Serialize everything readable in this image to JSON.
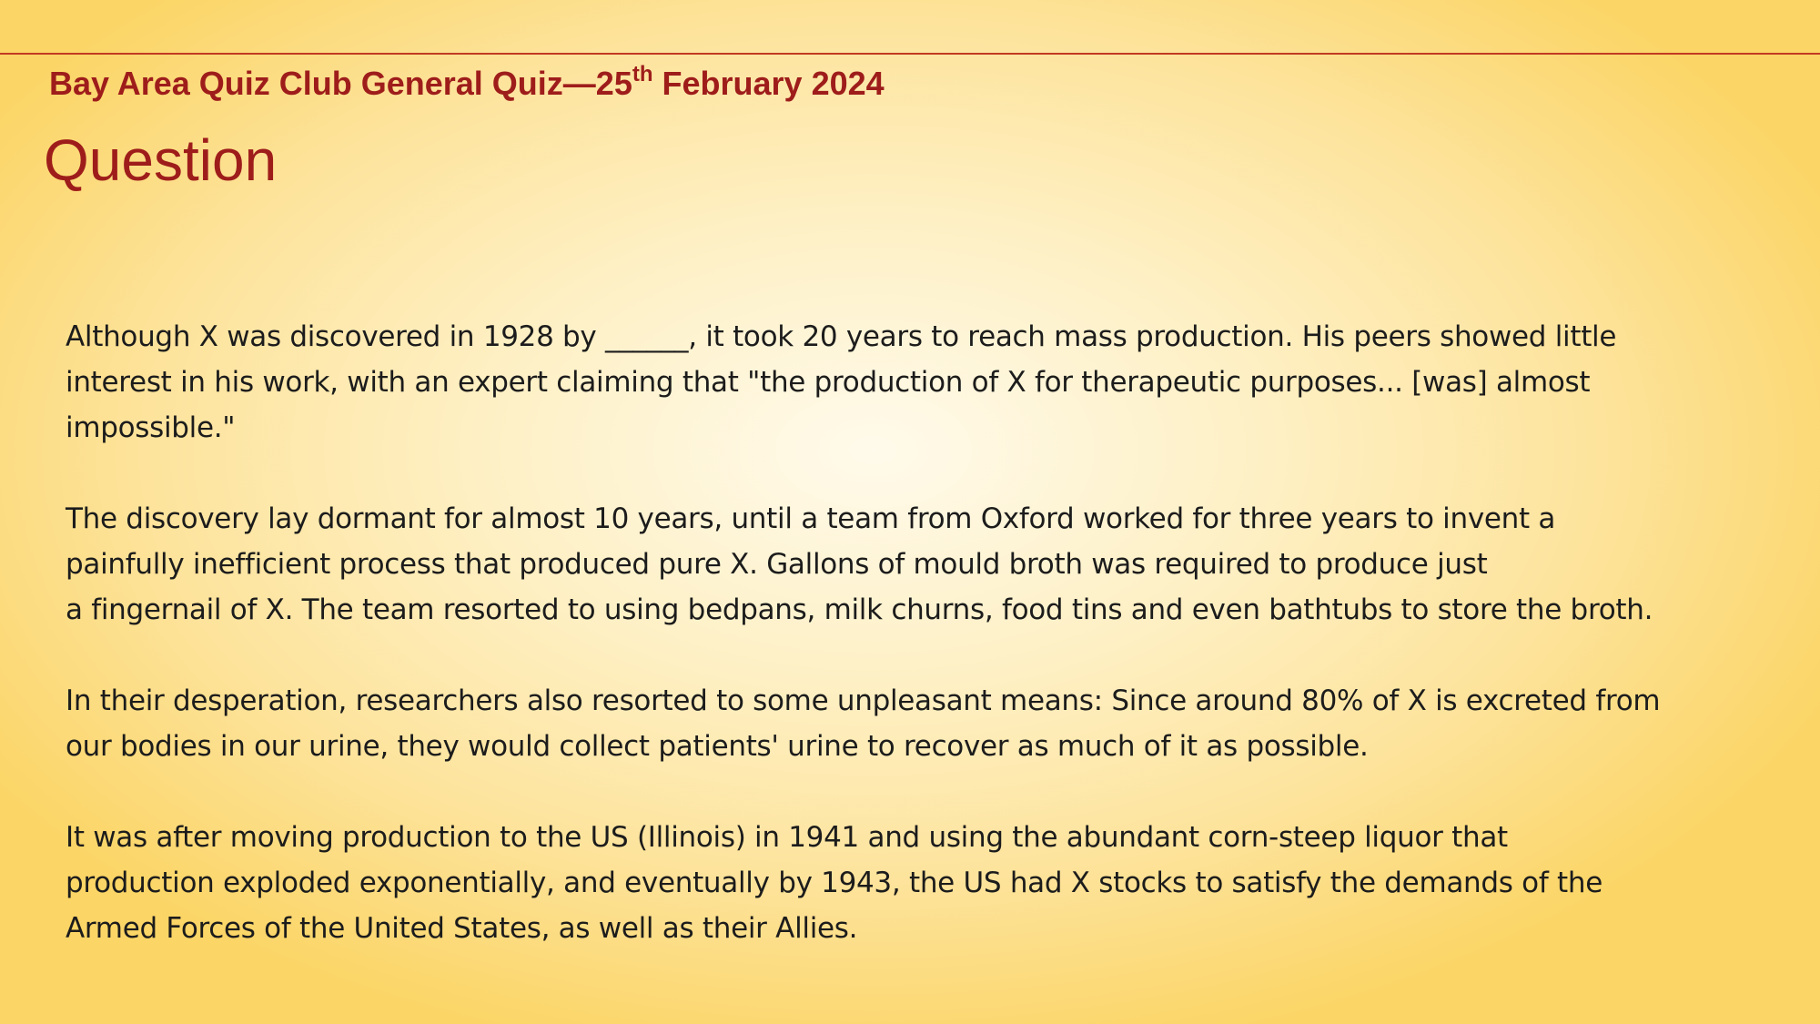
{
  "header": {
    "title_prefix": "Bay Area Quiz Club General Quiz—25",
    "title_superscript": "th",
    "title_suffix": " February 2024",
    "accent_color": "#9e1d1b",
    "rule_color": "#c13a22"
  },
  "slide": {
    "heading": "Question"
  },
  "paragraphs": [
    {
      "lines": [
        "Although X was discovered in 1928 by ______, it took 20 years to reach mass production. His peers showed little",
        "interest in his work, with an expert claiming that \"the production of X for therapeutic purposes... [was] almost",
        "impossible.\""
      ]
    },
    {
      "lines": [
        "The discovery lay dormant for almost 10 years, until a team from Oxford worked for three years to invent a",
        "painfully inefficient process that produced pure X. Gallons of mould broth was required to produce just",
        "a fingernail of X. The team resorted to using bedpans, milk churns, food tins and even bathtubs to store the broth."
      ]
    },
    {
      "lines": [
        "In their desperation, researchers also resorted to some unpleasant means: Since around 80% of X is excreted from",
        "our bodies in our urine, they would collect patients' urine to recover as much of it as possible."
      ]
    },
    {
      "lines": [
        "It was after moving production to the US (Illinois) in 1941 and using the abundant corn-steep liquor that",
        "production exploded exponentially, and eventually by 1943, the US had X stocks to satisfy the demands of the",
        "Armed Forces of the United States, as well as their Allies."
      ]
    }
  ]
}
